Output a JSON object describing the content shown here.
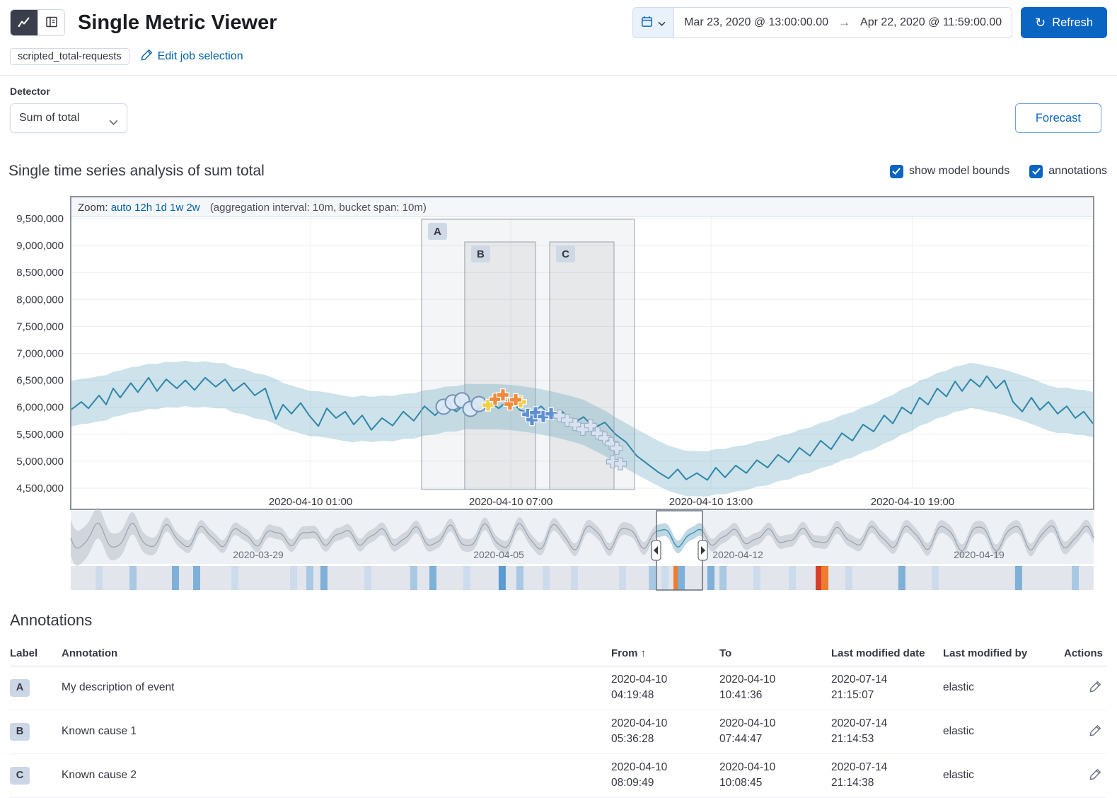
{
  "header": {
    "title": "Single Metric Viewer",
    "datepicker": {
      "from": "Mar 23, 2020 @ 13:00:00.00",
      "arrow": "→",
      "to": "Apr 22, 2020 @ 11:59:00.00"
    },
    "refresh_button": "Refresh"
  },
  "job_bar": {
    "job_badge": "scripted_total-requests",
    "edit_link": "Edit job selection"
  },
  "controls": {
    "detector_label": "Detector",
    "detector_value": "Sum of total",
    "forecast_button": "Forecast"
  },
  "analysis": {
    "title": "Single time series analysis of sum total",
    "model_bounds_label": "show model bounds",
    "annotations_label": "annotations"
  },
  "theme": {
    "primary": "#0a65c2",
    "link": "#0061a6",
    "line": "#2f86a7",
    "band_fill": "rgba(88,160,186,0.30)",
    "severity": {
      "minor": [
        "#f3cf45",
        "#ffffff"
      ],
      "major": [
        "#ef8a3a",
        "#ffffff"
      ],
      "warning": [
        "#5e8fd1",
        "#ffffff"
      ],
      "low": [
        "#d9e3f0",
        "#9db1ca"
      ]
    }
  },
  "chart_data": {
    "type": "line",
    "title": "Single time series analysis of sum total",
    "y_unit": "millions",
    "ylim": [
      4200000,
      9800000
    ],
    "zoom_bar": {
      "label": "Zoom:",
      "options": [
        "auto",
        "12h",
        "1d",
        "1w",
        "2w"
      ],
      "info": "(aggregation interval: 10m, bucket span: 10m)"
    },
    "y_ticks": [
      {
        "v": 9.5,
        "label": "9,500,000"
      },
      {
        "v": 9.0,
        "label": "9,000,000"
      },
      {
        "v": 8.5,
        "label": "8,500,000"
      },
      {
        "v": 8.0,
        "label": "8,000,000"
      },
      {
        "v": 7.5,
        "label": "7,500,000"
      },
      {
        "v": 7.0,
        "label": "7,000,000"
      },
      {
        "v": 6.5,
        "label": "6,500,000"
      },
      {
        "v": 6.0,
        "label": "6,000,000"
      },
      {
        "v": 5.5,
        "label": "5,500,000"
      },
      {
        "v": 5.0,
        "label": "5,000,000"
      },
      {
        "v": 4.5,
        "label": "4,500,000"
      }
    ],
    "x_ticks": [
      {
        "x": 0.2346,
        "label": "2020-04-10 01:00"
      },
      {
        "x": 0.4305,
        "label": "2020-04-10 07:00"
      },
      {
        "x": 0.6263,
        "label": "2020-04-10 13:00"
      },
      {
        "x": 0.8235,
        "label": "2020-04-10 19:00"
      }
    ],
    "band_halfwidth": 0.42,
    "series": [
      [
        0.0,
        5.95
      ],
      [
        0.0104,
        6.1
      ],
      [
        0.0173,
        5.98
      ],
      [
        0.0277,
        6.22
      ],
      [
        0.0346,
        6.05
      ],
      [
        0.0415,
        6.35
      ],
      [
        0.0484,
        6.18
      ],
      [
        0.0588,
        6.45
      ],
      [
        0.0657,
        6.28
      ],
      [
        0.0761,
        6.55
      ],
      [
        0.0844,
        6.3
      ],
      [
        0.0934,
        6.52
      ],
      [
        0.1038,
        6.35
      ],
      [
        0.1121,
        6.5
      ],
      [
        0.1211,
        6.32
      ],
      [
        0.1315,
        6.55
      ],
      [
        0.1419,
        6.38
      ],
      [
        0.1509,
        6.52
      ],
      [
        0.1592,
        6.3
      ],
      [
        0.1696,
        6.45
      ],
      [
        0.1799,
        6.22
      ],
      [
        0.1903,
        6.35
      ],
      [
        0.2007,
        5.78
      ],
      [
        0.2076,
        6.05
      ],
      [
        0.2159,
        5.88
      ],
      [
        0.2249,
        6.08
      ],
      [
        0.2332,
        5.85
      ],
      [
        0.2422,
        5.65
      ],
      [
        0.2505,
        5.98
      ],
      [
        0.2595,
        5.8
      ],
      [
        0.2685,
        5.92
      ],
      [
        0.2768,
        5.68
      ],
      [
        0.2851,
        5.85
      ],
      [
        0.2941,
        5.58
      ],
      [
        0.3045,
        5.8
      ],
      [
        0.3149,
        5.66
      ],
      [
        0.3253,
        5.92
      ],
      [
        0.3356,
        5.75
      ],
      [
        0.346,
        6.02
      ],
      [
        0.3564,
        5.85
      ],
      [
        0.3668,
        6.05
      ],
      [
        0.3772,
        5.92
      ],
      [
        0.3875,
        6.1
      ],
      [
        0.3979,
        5.95
      ],
      [
        0.4083,
        6.12
      ],
      [
        0.4187,
        5.98
      ],
      [
        0.4291,
        6.15
      ],
      [
        0.4394,
        5.95
      ],
      [
        0.4498,
        5.88
      ],
      [
        0.4602,
        6.02
      ],
      [
        0.4706,
        5.82
      ],
      [
        0.481,
        5.92
      ],
      [
        0.4913,
        5.7
      ],
      [
        0.5017,
        5.82
      ],
      [
        0.5121,
        5.62
      ],
      [
        0.5225,
        5.72
      ],
      [
        0.5329,
        5.5
      ],
      [
        0.5433,
        5.35
      ],
      [
        0.5536,
        5.1
      ],
      [
        0.564,
        4.95
      ],
      [
        0.5744,
        4.8
      ],
      [
        0.5848,
        4.68
      ],
      [
        0.5938,
        4.85
      ],
      [
        0.6021,
        4.66
      ],
      [
        0.6125,
        4.78
      ],
      [
        0.6228,
        4.65
      ],
      [
        0.6311,
        4.88
      ],
      [
        0.6401,
        4.7
      ],
      [
        0.6505,
        4.92
      ],
      [
        0.6609,
        4.78
      ],
      [
        0.6713,
        5.02
      ],
      [
        0.6817,
        4.88
      ],
      [
        0.692,
        5.12
      ],
      [
        0.7024,
        4.98
      ],
      [
        0.7128,
        5.25
      ],
      [
        0.7232,
        5.1
      ],
      [
        0.7336,
        5.38
      ],
      [
        0.7439,
        5.22
      ],
      [
        0.7543,
        5.52
      ],
      [
        0.7647,
        5.38
      ],
      [
        0.7751,
        5.68
      ],
      [
        0.7855,
        5.55
      ],
      [
        0.7958,
        5.85
      ],
      [
        0.8042,
        5.7
      ],
      [
        0.8131,
        6.0
      ],
      [
        0.8221,
        5.88
      ],
      [
        0.8304,
        6.18
      ],
      [
        0.8387,
        6.05
      ],
      [
        0.8477,
        6.35
      ],
      [
        0.8567,
        6.2
      ],
      [
        0.8651,
        6.48
      ],
      [
        0.872,
        6.3
      ],
      [
        0.8803,
        6.52
      ],
      [
        0.8893,
        6.38
      ],
      [
        0.8962,
        6.58
      ],
      [
        0.9052,
        6.35
      ],
      [
        0.9135,
        6.5
      ],
      [
        0.9218,
        6.1
      ],
      [
        0.9308,
        5.92
      ],
      [
        0.9398,
        6.18
      ],
      [
        0.9481,
        5.95
      ],
      [
        0.9564,
        6.1
      ],
      [
        0.9654,
        5.88
      ],
      [
        0.9744,
        6.02
      ],
      [
        0.9827,
        5.8
      ],
      [
        0.991,
        5.92
      ],
      [
        1.0,
        5.7
      ]
    ],
    "regions": [
      {
        "label": "A",
        "x0": 0.3432,
        "x1": 0.5515,
        "full": true
      },
      {
        "label": "B",
        "x0": 0.3854,
        "x1": 0.4547,
        "full": false
      },
      {
        "label": "C",
        "x0": 0.4685,
        "x1": 0.5315,
        "full": false
      }
    ],
    "markers": {
      "circles": [
        [
          0.3647,
          6.01
        ],
        [
          0.3737,
          6.09
        ],
        [
          0.3827,
          6.13
        ],
        [
          0.391,
          5.97
        ],
        [
          0.3993,
          6.06
        ]
      ],
      "crosses": [
        {
          "x": 0.4083,
          "v": 6.04,
          "sev": "minor"
        },
        {
          "x": 0.4401,
          "v": 6.1,
          "sev": "minor"
        },
        {
          "x": 0.4152,
          "v": 6.15,
          "sev": "major"
        },
        {
          "x": 0.4228,
          "v": 6.23,
          "sev": "major"
        },
        {
          "x": 0.4297,
          "v": 6.06,
          "sev": "major"
        },
        {
          "x": 0.4353,
          "v": 6.14,
          "sev": "major"
        },
        {
          "x": 0.4471,
          "v": 5.87,
          "sev": "warning"
        },
        {
          "x": 0.4512,
          "v": 5.77,
          "sev": "warning"
        },
        {
          "x": 0.4547,
          "v": 5.9,
          "sev": "warning"
        },
        {
          "x": 0.4623,
          "v": 5.83,
          "sev": "warning"
        },
        {
          "x": 0.4699,
          "v": 5.88,
          "sev": "warning"
        },
        {
          "x": 0.4782,
          "v": 5.84,
          "sev": "low"
        },
        {
          "x": 0.4858,
          "v": 5.76,
          "sev": "low"
        },
        {
          "x": 0.4934,
          "v": 5.68,
          "sev": "low"
        },
        {
          "x": 0.501,
          "v": 5.59,
          "sev": "low"
        },
        {
          "x": 0.5086,
          "v": 5.66,
          "sev": "low"
        },
        {
          "x": 0.5155,
          "v": 5.52,
          "sev": "low"
        },
        {
          "x": 0.5224,
          "v": 5.43,
          "sev": "low"
        },
        {
          "x": 0.5287,
          "v": 5.33,
          "sev": "low"
        },
        {
          "x": 0.5342,
          "v": 5.24,
          "sev": "low"
        },
        {
          "x": 0.5301,
          "v": 4.99,
          "sev": "low"
        },
        {
          "x": 0.5377,
          "v": 4.95,
          "sev": "low"
        }
      ]
    },
    "context": {
      "x_ticks": [
        {
          "x": 0.1834,
          "label": "2020-03-29"
        },
        {
          "x": 0.4187,
          "label": "2020-04-05"
        },
        {
          "x": 0.6526,
          "label": "2020-04-12"
        },
        {
          "x": 0.8886,
          "label": "2020-04-19"
        }
      ],
      "selection": [
        0.573,
        0.618
      ],
      "cycles": 29,
      "swimlane_cells": [
        {
          "x": 0.0277,
          "color": "#cddcec"
        },
        {
          "x": 0.0609,
          "color": "#a9c8e4"
        },
        {
          "x": 0.1024,
          "color": "#7fb0d8"
        },
        {
          "x": 0.1232,
          "color": "#7fb0d8"
        },
        {
          "x": 0.1606,
          "color": "#cddcec"
        },
        {
          "x": 0.218,
          "color": "#cddcec"
        },
        {
          "x": 0.2339,
          "color": "#a9c8e4"
        },
        {
          "x": 0.2477,
          "color": "#7fb0d8"
        },
        {
          "x": 0.2907,
          "color": "#cddcec"
        },
        {
          "x": 0.3356,
          "color": "#a9c8e4"
        },
        {
          "x": 0.3543,
          "color": "#7fb0d8"
        },
        {
          "x": 0.3875,
          "color": "#cddcec"
        },
        {
          "x": 0.4221,
          "color": "#5a9bd3"
        },
        {
          "x": 0.4394,
          "color": "#a9c8e4"
        },
        {
          "x": 0.4651,
          "color": "#cddcec"
        },
        {
          "x": 0.4927,
          "color": "#cddcec"
        },
        {
          "x": 0.5398,
          "color": "#cddcec"
        },
        {
          "x": 0.5689,
          "color": "#a9c8e4"
        },
        {
          "x": 0.5813,
          "color": "#cddcec"
        },
        {
          "x": 0.5931,
          "color": "#ee7d2e"
        },
        {
          "x": 0.5973,
          "color": "#7fb0d8"
        },
        {
          "x": 0.6263,
          "color": "#7fb0d8"
        },
        {
          "x": 0.6381,
          "color": "#a9c8e4"
        },
        {
          "x": 0.6713,
          "color": "#cddcec"
        },
        {
          "x": 0.7059,
          "color": "#cddcec"
        },
        {
          "x": 0.7322,
          "color": "#d6402a"
        },
        {
          "x": 0.7377,
          "color": "#ee7d2e"
        },
        {
          "x": 0.7612,
          "color": "#cddcec"
        },
        {
          "x": 0.8131,
          "color": "#7fb0d8"
        },
        {
          "x": 0.8457,
          "color": "#cddcec"
        },
        {
          "x": 0.9273,
          "color": "#7fb0d8"
        },
        {
          "x": 0.9827,
          "color": "#a9c8e4"
        }
      ]
    }
  },
  "annotations_table": {
    "title": "Annotations",
    "columns": {
      "label": "Label",
      "annotation": "Annotation",
      "from": "From",
      "to": "To",
      "modified_date": "Last modified date",
      "modified_by": "Last modified by",
      "actions": "Actions"
    },
    "sort_arrow": "↑",
    "rows": [
      {
        "label": "A",
        "annotation": "My description of event",
        "from_date": "2020-04-10",
        "from_time": "04:19:48",
        "to_date": "2020-04-10",
        "to_time": "10:41:36",
        "mod_date": "2020-07-14",
        "mod_time": "21:15:07",
        "by": "elastic"
      },
      {
        "label": "B",
        "annotation": "Known cause 1",
        "from_date": "2020-04-10",
        "from_time": "05:36:28",
        "to_date": "2020-04-10",
        "to_time": "07:44:47",
        "mod_date": "2020-07-14",
        "mod_time": "21:14:53",
        "by": "elastic"
      },
      {
        "label": "C",
        "annotation": "Known cause 2",
        "from_date": "2020-04-10",
        "from_time": "08:09:49",
        "to_date": "2020-04-10",
        "to_time": "10:08:45",
        "mod_date": "2020-07-14",
        "mod_time": "21:14:38",
        "by": "elastic"
      }
    ]
  }
}
